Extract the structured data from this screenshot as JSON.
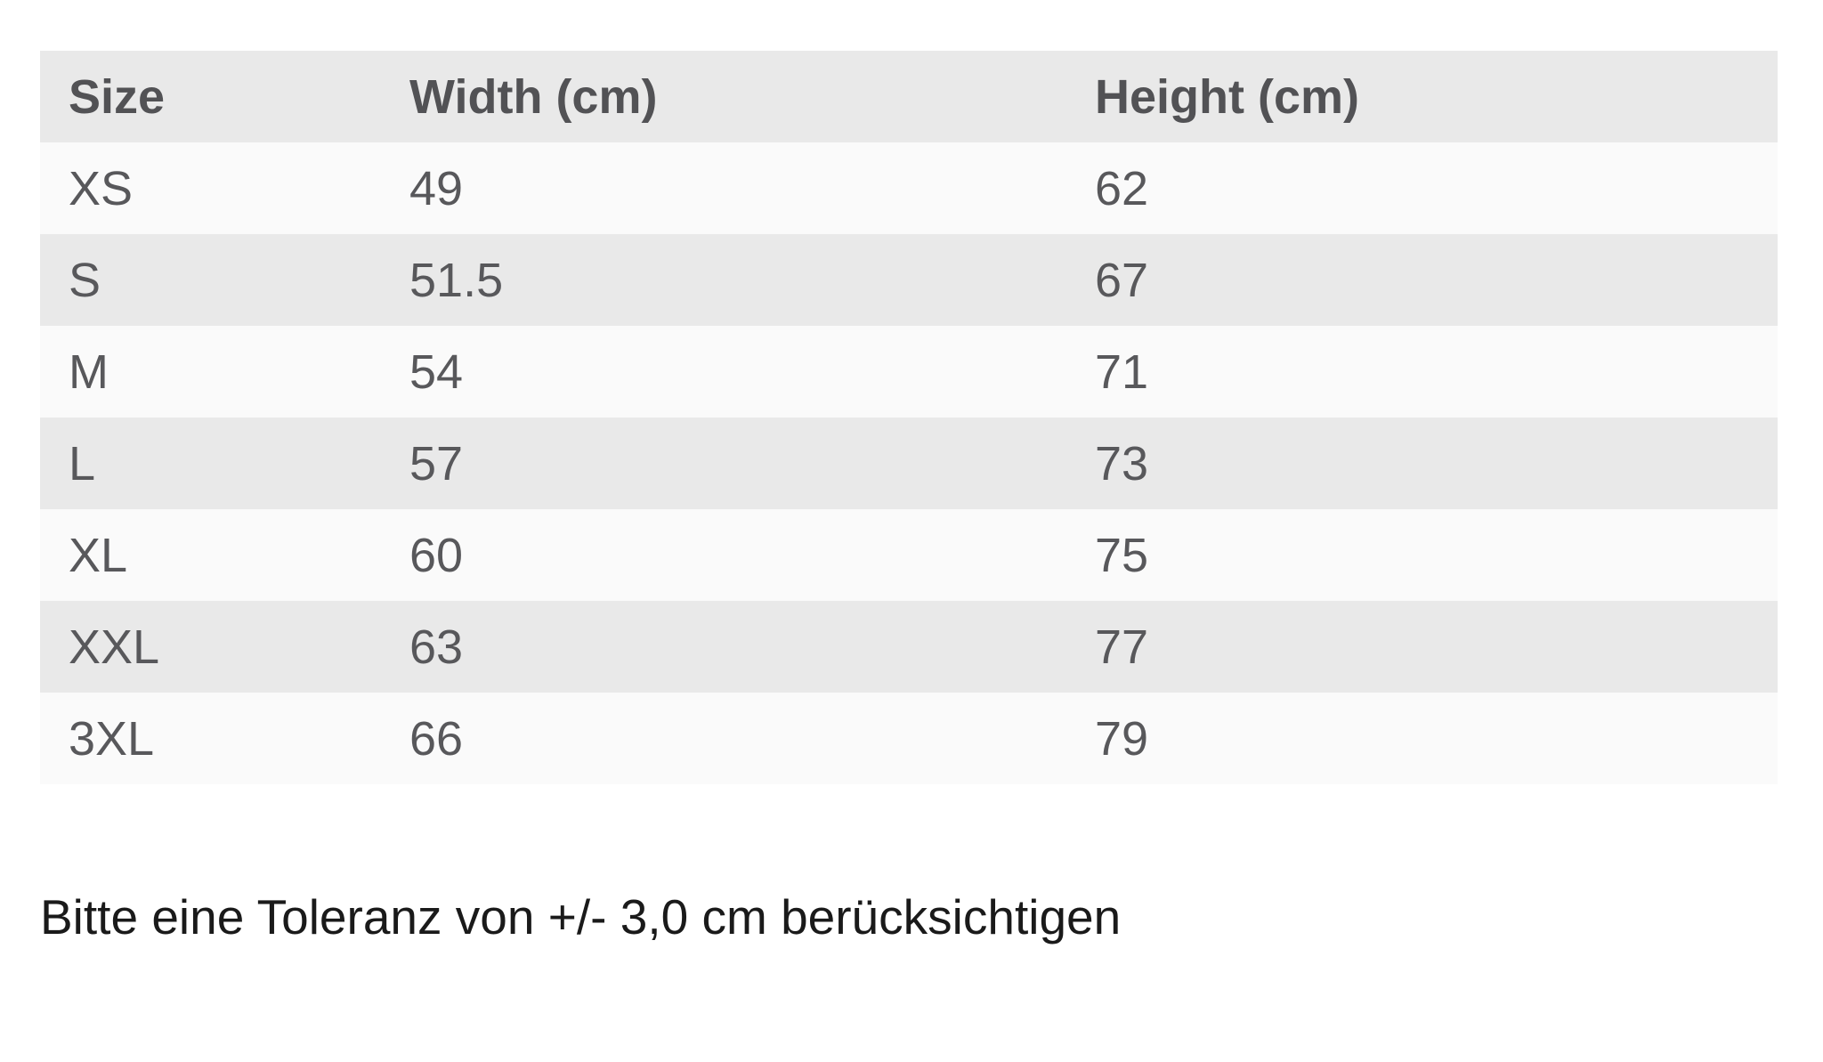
{
  "size_chart": {
    "columns": [
      {
        "label": "Size"
      },
      {
        "label": "Width (cm)"
      },
      {
        "label": "Height (cm)"
      }
    ],
    "rows": [
      {
        "size": "XS",
        "width": "49",
        "height": "62"
      },
      {
        "size": "S",
        "width": "51.5",
        "height": "67"
      },
      {
        "size": "M",
        "width": "54",
        "height": "71"
      },
      {
        "size": "L",
        "width": "57",
        "height": "73"
      },
      {
        "size": "XL",
        "width": "60",
        "height": "75"
      },
      {
        "size": "XXL",
        "width": "63",
        "height": "77"
      },
      {
        "size": "3XL",
        "width": "66",
        "height": "79"
      }
    ]
  },
  "note": "Bitte eine Toleranz von +/- 3,0 cm berücksichtigen",
  "colors": {
    "stripe_dark": "#e9e9e9",
    "stripe_light": "#fafafa",
    "table_text": "#58585b",
    "note_text": "#1a1a1a",
    "background": "#ffffff"
  }
}
